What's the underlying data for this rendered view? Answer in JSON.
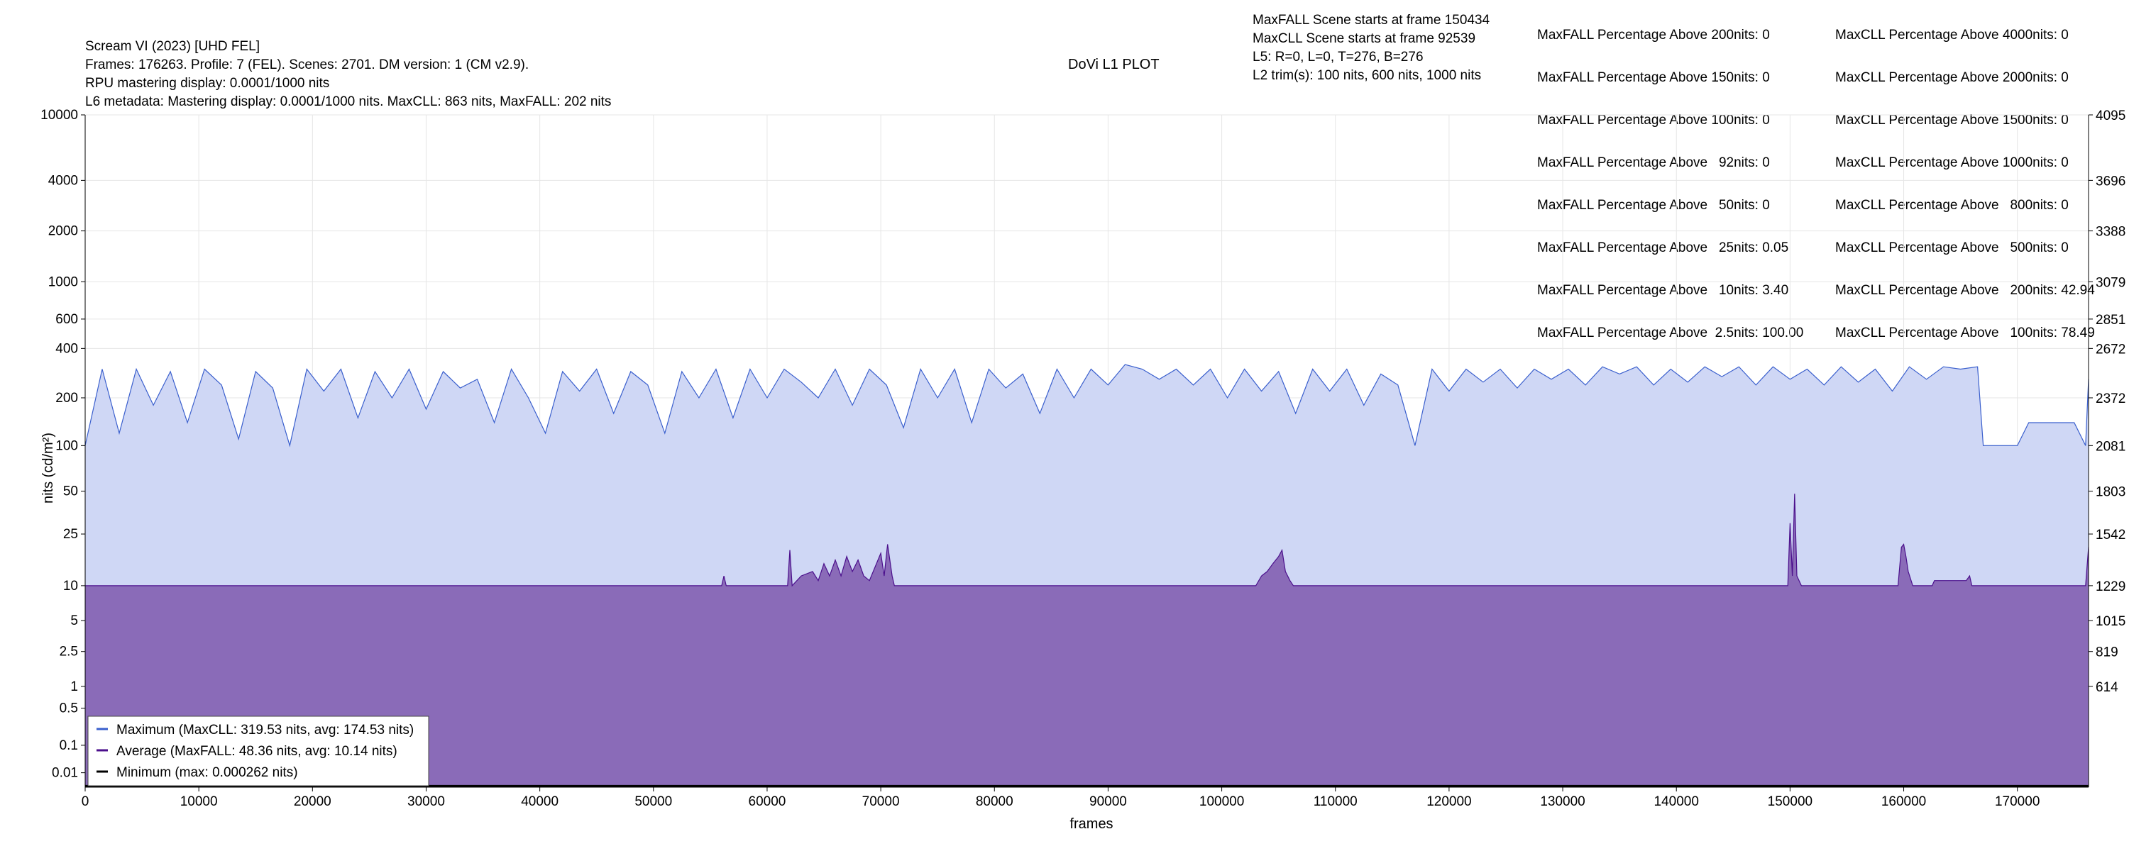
{
  "header": {
    "title_lines": [
      "Scream VI (2023) [UHD FEL]",
      "Frames: 176263. Profile: 7 (FEL). Scenes: 2701. DM version: 1 (CM v2.9).",
      "RPU mastering display: 0.0001/1000 nits",
      "L6 metadata: Mastering display: 0.0001/1000 nits. MaxCLL: 863 nits, MaxFALL: 202 nits"
    ],
    "center_title": "DoVi L1 PLOT",
    "scene_info": [
      "MaxFALL Scene starts at frame 150434",
      "MaxCLL Scene starts at frame 92539",
      "L5: R=0, L=0, T=276, B=276",
      "L2 trim(s): 100 nits, 600 nits, 1000 nits"
    ],
    "maxfall_stats": [
      "MaxFALL Percentage Above 200nits: 0",
      "MaxFALL Percentage Above 150nits: 0",
      "MaxFALL Percentage Above 100nits: 0",
      "MaxFALL Percentage Above   92nits: 0",
      "MaxFALL Percentage Above   50nits: 0",
      "MaxFALL Percentage Above   25nits: 0.05",
      "MaxFALL Percentage Above   10nits: 3.40",
      "MaxFALL Percentage Above  2.5nits: 100.00"
    ],
    "maxcll_stats": [
      "MaxCLL Percentage Above 4000nits: 0",
      "MaxCLL Percentage Above 2000nits: 0",
      "MaxCLL Percentage Above 1500nits: 0",
      "MaxCLL Percentage Above 1000nits: 0",
      "MaxCLL Percentage Above   800nits: 0",
      "MaxCLL Percentage Above   500nits: 0",
      "MaxCLL Percentage Above   200nits: 42.94",
      "MaxCLL Percentage Above   100nits: 78.49"
    ]
  },
  "chart_data": {
    "type": "area",
    "xlabel": "frames",
    "ylabel": "nits (cd/m²)",
    "xlim": [
      0,
      176263
    ],
    "x_ticks": [
      0,
      10000,
      20000,
      30000,
      40000,
      50000,
      60000,
      70000,
      80000,
      90000,
      100000,
      110000,
      120000,
      130000,
      140000,
      150000,
      160000,
      170000
    ],
    "y_scale": "pq",
    "y_ticks": [
      "0.01",
      "0.1",
      "0.5",
      "1",
      "2.5",
      "5",
      "10",
      "25",
      "50",
      "100",
      "200",
      "400",
      "600",
      "1000",
      "2000",
      "4000",
      "10000"
    ],
    "y_right_ticks": [
      {
        "nits": 1,
        "code": "614"
      },
      {
        "nits": 2.5,
        "code": "819"
      },
      {
        "nits": 5,
        "code": "1015"
      },
      {
        "nits": 10,
        "code": "1229"
      },
      {
        "nits": 25,
        "code": "1542"
      },
      {
        "nits": 50,
        "code": "1803"
      },
      {
        "nits": 100,
        "code": "2081"
      },
      {
        "nits": 200,
        "code": "2372"
      },
      {
        "nits": 400,
        "code": "2672"
      },
      {
        "nits": 600,
        "code": "2851"
      },
      {
        "nits": 1000,
        "code": "3079"
      },
      {
        "nits": 2000,
        "code": "3388"
      },
      {
        "nits": 4000,
        "code": "3696"
      },
      {
        "nits": 10000,
        "code": "4095"
      }
    ],
    "grid": true,
    "legend_position": "bottom-left",
    "series": [
      {
        "name": "Maximum (MaxCLL: 319.53 nits, avg: 174.53 nits)",
        "color": "#3a5fcd",
        "fill": "#cfd7f5",
        "baseline": 100,
        "points": [
          [
            0,
            100
          ],
          [
            1500,
            300
          ],
          [
            3000,
            120
          ],
          [
            4500,
            300
          ],
          [
            6000,
            180
          ],
          [
            7500,
            290
          ],
          [
            9000,
            140
          ],
          [
            10500,
            300
          ],
          [
            12000,
            240
          ],
          [
            13500,
            110
          ],
          [
            15000,
            290
          ],
          [
            16500,
            230
          ],
          [
            18000,
            100
          ],
          [
            19500,
            300
          ],
          [
            21000,
            220
          ],
          [
            22500,
            300
          ],
          [
            24000,
            150
          ],
          [
            25500,
            290
          ],
          [
            27000,
            200
          ],
          [
            28500,
            300
          ],
          [
            30000,
            170
          ],
          [
            31500,
            290
          ],
          [
            33000,
            230
          ],
          [
            34500,
            260
          ],
          [
            36000,
            140
          ],
          [
            37500,
            300
          ],
          [
            39000,
            200
          ],
          [
            40500,
            120
          ],
          [
            42000,
            290
          ],
          [
            43500,
            220
          ],
          [
            45000,
            300
          ],
          [
            46500,
            160
          ],
          [
            48000,
            290
          ],
          [
            49500,
            240
          ],
          [
            51000,
            120
          ],
          [
            52500,
            290
          ],
          [
            54000,
            200
          ],
          [
            55500,
            300
          ],
          [
            57000,
            150
          ],
          [
            58500,
            300
          ],
          [
            60000,
            200
          ],
          [
            61500,
            300
          ],
          [
            63000,
            250
          ],
          [
            64500,
            200
          ],
          [
            66000,
            300
          ],
          [
            67500,
            180
          ],
          [
            69000,
            300
          ],
          [
            70500,
            240
          ],
          [
            72000,
            130
          ],
          [
            73500,
            300
          ],
          [
            75000,
            200
          ],
          [
            76500,
            300
          ],
          [
            78000,
            140
          ],
          [
            79500,
            300
          ],
          [
            81000,
            230
          ],
          [
            82500,
            280
          ],
          [
            84000,
            160
          ],
          [
            85500,
            300
          ],
          [
            87000,
            200
          ],
          [
            88500,
            300
          ],
          [
            90000,
            240
          ],
          [
            91500,
            320
          ],
          [
            93000,
            300
          ],
          [
            94500,
            260
          ],
          [
            96000,
            300
          ],
          [
            97500,
            240
          ],
          [
            99000,
            300
          ],
          [
            100500,
            200
          ],
          [
            102000,
            300
          ],
          [
            103500,
            220
          ],
          [
            105000,
            290
          ],
          [
            106500,
            160
          ],
          [
            108000,
            300
          ],
          [
            109500,
            220
          ],
          [
            111000,
            300
          ],
          [
            112500,
            180
          ],
          [
            114000,
            280
          ],
          [
            115500,
            240
          ],
          [
            117000,
            100
          ],
          [
            118500,
            300
          ],
          [
            120000,
            220
          ],
          [
            121500,
            300
          ],
          [
            123000,
            250
          ],
          [
            124500,
            300
          ],
          [
            126000,
            230
          ],
          [
            127500,
            300
          ],
          [
            129000,
            260
          ],
          [
            130500,
            300
          ],
          [
            132000,
            240
          ],
          [
            133500,
            310
          ],
          [
            135000,
            280
          ],
          [
            136500,
            310
          ],
          [
            138000,
            240
          ],
          [
            139500,
            300
          ],
          [
            141000,
            250
          ],
          [
            142500,
            310
          ],
          [
            144000,
            270
          ],
          [
            145500,
            310
          ],
          [
            147000,
            240
          ],
          [
            148500,
            310
          ],
          [
            150000,
            260
          ],
          [
            151500,
            300
          ],
          [
            153000,
            240
          ],
          [
            154500,
            310
          ],
          [
            156000,
            250
          ],
          [
            157500,
            300
          ],
          [
            159000,
            220
          ],
          [
            160500,
            310
          ],
          [
            162000,
            260
          ],
          [
            163500,
            310
          ],
          [
            165000,
            300
          ],
          [
            166500,
            310
          ],
          [
            167000,
            100
          ],
          [
            170000,
            100
          ],
          [
            171000,
            140
          ],
          [
            175000,
            140
          ],
          [
            176000,
            100
          ],
          [
            176263,
            260
          ]
        ]
      },
      {
        "name": "Average (MaxFALL: 48.36 nits, avg: 10.14 nits)",
        "color": "#4b0f8c",
        "fill": "#8a6bb8",
        "baseline": 10,
        "points": [
          [
            0,
            10
          ],
          [
            56000,
            10
          ],
          [
            56200,
            12
          ],
          [
            56400,
            10
          ],
          [
            61800,
            10
          ],
          [
            62000,
            19
          ],
          [
            62200,
            10
          ],
          [
            63000,
            12
          ],
          [
            64000,
            13
          ],
          [
            64500,
            11
          ],
          [
            65000,
            15
          ],
          [
            65500,
            12
          ],
          [
            66000,
            16
          ],
          [
            66500,
            12
          ],
          [
            67000,
            17
          ],
          [
            67500,
            13
          ],
          [
            68000,
            16
          ],
          [
            68500,
            12
          ],
          [
            69000,
            11
          ],
          [
            70000,
            18
          ],
          [
            70300,
            12
          ],
          [
            70600,
            21
          ],
          [
            71000,
            12
          ],
          [
            71200,
            10
          ],
          [
            103000,
            10
          ],
          [
            103500,
            12
          ],
          [
            104000,
            13
          ],
          [
            104500,
            15
          ],
          [
            105000,
            17
          ],
          [
            105300,
            19
          ],
          [
            105600,
            13
          ],
          [
            106000,
            11
          ],
          [
            106300,
            10
          ],
          [
            149800,
            10
          ],
          [
            150000,
            30
          ],
          [
            150200,
            12
          ],
          [
            150400,
            48
          ],
          [
            150600,
            12
          ],
          [
            151000,
            10
          ],
          [
            159500,
            10
          ],
          [
            159800,
            20
          ],
          [
            160000,
            21
          ],
          [
            160200,
            17
          ],
          [
            160400,
            13
          ],
          [
            160800,
            10
          ],
          [
            162500,
            10
          ],
          [
            162700,
            11
          ],
          [
            165500,
            11
          ],
          [
            165800,
            12
          ],
          [
            166000,
            10
          ],
          [
            176000,
            10
          ],
          [
            176263,
            20
          ]
        ]
      },
      {
        "name": "Minimum (max: 0.000262 nits)",
        "color": "#000000",
        "points": [
          [
            0,
            0.0001
          ],
          [
            176263,
            0.0001
          ]
        ]
      }
    ]
  }
}
